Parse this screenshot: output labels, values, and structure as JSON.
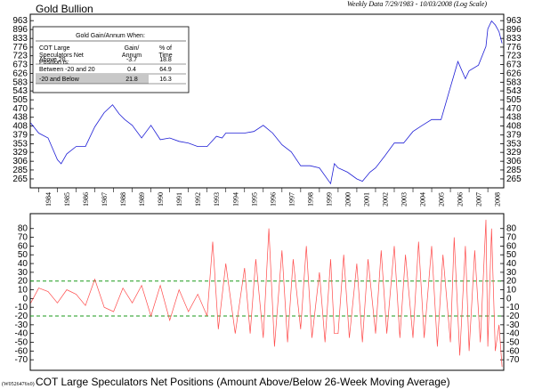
{
  "chart_data": [
    {
      "type": "line",
      "title": "Gold Bullion",
      "subtitle": "Weekly Data 7/29/1983 - 10/03/2008 (Log Scale)",
      "y_scale": "log",
      "ylim": [
        250,
        1000
      ],
      "y_ticks": [
        963,
        896,
        833,
        776,
        723,
        673,
        626,
        583,
        543,
        505,
        470,
        438,
        408,
        379,
        353,
        329,
        306,
        285,
        265
      ],
      "x_ticks": [
        "1984",
        "1985",
        "1986",
        "1987",
        "1988",
        "1989",
        "1990",
        "1991",
        "1992",
        "1993",
        "1994",
        "1995",
        "1996",
        "1997",
        "1998",
        "1999",
        "2000",
        "2001",
        "2002",
        "2003",
        "2004",
        "2005",
        "2006",
        "2007",
        "2008"
      ],
      "series": [
        {
          "color": "#1f1fd6",
          "x": [
            1983.58,
            1984.0,
            1984.5,
            1985.0,
            1985.2,
            1985.5,
            1986.0,
            1986.5,
            1987.0,
            1987.5,
            1987.95,
            1988.3,
            1988.6,
            1989.0,
            1989.5,
            1990.0,
            1990.5,
            1991.0,
            1991.5,
            1992.0,
            1992.5,
            1993.0,
            1993.5,
            1993.8,
            1994.0,
            1994.5,
            1995.0,
            1995.5,
            1996.0,
            1996.5,
            1997.0,
            1997.5,
            1998.0,
            1998.5,
            1999.0,
            1999.6,
            1999.8,
            2000.0,
            2000.5,
            2001.0,
            2001.3,
            2001.7,
            2002.0,
            2002.5,
            2003.0,
            2003.5,
            2004.0,
            2004.5,
            2005.0,
            2005.5,
            2006.0,
            2006.4,
            2006.8,
            2007.0,
            2007.5,
            2007.9,
            2008.0,
            2008.2,
            2008.4,
            2008.6,
            2008.76
          ],
          "values": [
            418,
            385,
            370,
            310,
            300,
            325,
            345,
            345,
            405,
            455,
            485,
            450,
            430,
            410,
            370,
            410,
            365,
            370,
            360,
            355,
            345,
            345,
            375,
            370,
            385,
            385,
            385,
            390,
            410,
            385,
            350,
            330,
            295,
            295,
            290,
            255,
            300,
            290,
            280,
            265,
            260,
            280,
            290,
            320,
            355,
            355,
            390,
            410,
            430,
            430,
            560,
            690,
            600,
            640,
            670,
            780,
            900,
            960,
            930,
            880,
            800
          ]
        }
      ],
      "inset_table": {
        "header": "Gold Gain/Annum When:",
        "columns": [
          "COT Large Speculators Net Position is:",
          "Gain/ Annum",
          "% of Time"
        ],
        "rows": [
          {
            "label": "Above 20",
            "gain": "-3.7",
            "time": "18.8"
          },
          {
            "label": "Between -20 and 20",
            "gain": "0.4",
            "time": "64.9"
          },
          {
            "label": "-20 and Below",
            "gain": "21.8",
            "time": "16.3",
            "highlighted": true
          }
        ]
      }
    },
    {
      "type": "line",
      "title": "COT Large Speculators Net Positions (Amount Above/Below 26-Week Moving Average)",
      "ylim": [
        -80,
        95
      ],
      "y_ticks": [
        80,
        70,
        60,
        50,
        40,
        30,
        20,
        10,
        0,
        -10,
        -20,
        -30,
        -40,
        -50,
        -60,
        -70
      ],
      "reference_lines": [
        20,
        -20
      ],
      "series": [
        {
          "color": "#ff4a4a",
          "x": [
            1983.58,
            1984.0,
            1984.5,
            1985.0,
            1985.5,
            1986.0,
            1986.5,
            1987.0,
            1987.5,
            1988.0,
            1988.5,
            1989.0,
            1989.5,
            1990.0,
            1990.5,
            1991.0,
            1991.5,
            1992.0,
            1992.5,
            1993.0,
            1993.3,
            1993.6,
            1994.0,
            1994.5,
            1995.0,
            1995.3,
            1995.6,
            1996.0,
            1996.3,
            1996.6,
            1997.0,
            1997.3,
            1997.6,
            1998.0,
            1998.3,
            1998.6,
            1999.0,
            1999.3,
            1999.6,
            1999.8,
            2000.0,
            2000.3,
            2000.6,
            2001.0,
            2001.3,
            2001.6,
            2002.0,
            2002.3,
            2002.6,
            2003.0,
            2003.3,
            2003.6,
            2004.0,
            2004.3,
            2004.6,
            2005.0,
            2005.3,
            2005.6,
            2006.0,
            2006.2,
            2006.5,
            2006.8,
            2007.0,
            2007.3,
            2007.6,
            2007.9,
            2008.0,
            2008.2,
            2008.4,
            2008.6,
            2008.76
          ],
          "values": [
            -5,
            12,
            8,
            -5,
            10,
            5,
            -8,
            22,
            -10,
            -15,
            12,
            -5,
            15,
            -20,
            15,
            -25,
            10,
            -15,
            5,
            -20,
            65,
            -35,
            40,
            -40,
            35,
            -40,
            45,
            -45,
            80,
            -55,
            55,
            -50,
            45,
            -35,
            60,
            -45,
            30,
            -50,
            45,
            -40,
            -40,
            50,
            -45,
            40,
            -50,
            45,
            -40,
            55,
            -40,
            60,
            -45,
            50,
            -45,
            65,
            -45,
            60,
            -55,
            50,
            -50,
            70,
            -65,
            60,
            -60,
            55,
            -50,
            90,
            -55,
            80,
            -60,
            -30,
            -78
          ]
        }
      ]
    }
  ],
  "footer_code": "(W0526476x0)"
}
